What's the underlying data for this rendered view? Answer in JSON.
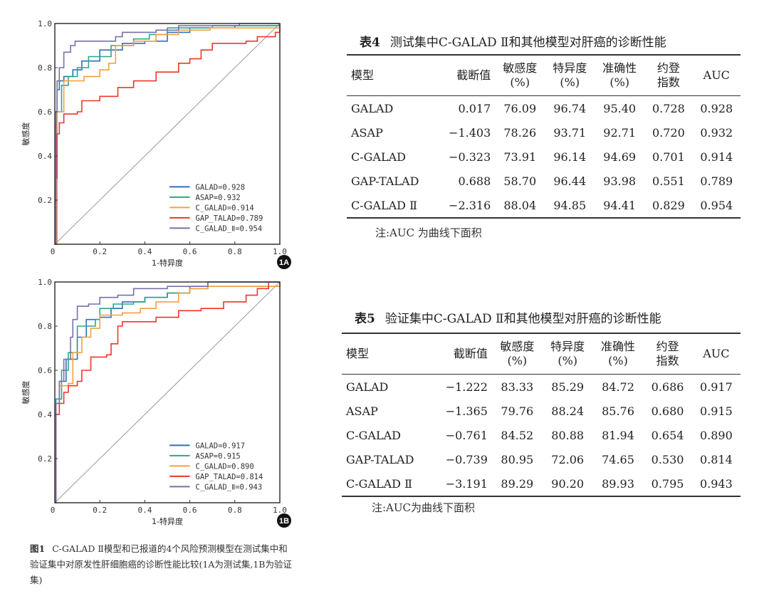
{
  "chart_data": [
    {
      "type": "line",
      "panel_label": "1A",
      "xlabel": "1-特异度",
      "ylabel": "敏感度",
      "xlim": [
        0,
        1
      ],
      "ylim": [
        0,
        1
      ],
      "xticks": [
        "0",
        "0.2",
        "0.4",
        "0.6",
        "0.8",
        "1.0"
      ],
      "yticks": [
        "0.2",
        "0.4",
        "0.6",
        "0.8",
        "1.0"
      ],
      "legend_position": "bottom-right",
      "diagonal_reference": true,
      "series": [
        {
          "name": "GALAD=0.928",
          "color": "#2e6fb8",
          "points": [
            [
              0,
              0
            ],
            [
              0.005,
              0.55
            ],
            [
              0.01,
              0.7
            ],
            [
              0.02,
              0.74
            ],
            [
              0.04,
              0.76
            ],
            [
              0.08,
              0.79
            ],
            [
              0.12,
              0.83
            ],
            [
              0.2,
              0.88
            ],
            [
              0.3,
              0.91
            ],
            [
              0.4,
              0.92
            ],
            [
              0.5,
              0.96
            ],
            [
              0.6,
              0.98
            ],
            [
              0.8,
              0.99
            ],
            [
              1,
              1
            ]
          ]
        },
        {
          "name": "ASAP=0.932",
          "color": "#2ca58d",
          "points": [
            [
              0,
              0
            ],
            [
              0.01,
              0.6
            ],
            [
              0.03,
              0.72
            ],
            [
              0.06,
              0.76
            ],
            [
              0.1,
              0.8
            ],
            [
              0.15,
              0.85
            ],
            [
              0.25,
              0.9
            ],
            [
              0.35,
              0.93
            ],
            [
              0.42,
              0.95
            ],
            [
              0.5,
              0.98
            ],
            [
              0.7,
              0.99
            ],
            [
              1,
              1
            ]
          ]
        },
        {
          "name": "C_GALAD=0.914",
          "color": "#f5a040",
          "points": [
            [
              0,
              0
            ],
            [
              0.01,
              0.6
            ],
            [
              0.04,
              0.74
            ],
            [
              0.09,
              0.74
            ],
            [
              0.13,
              0.76
            ],
            [
              0.2,
              0.79
            ],
            [
              0.24,
              0.82
            ],
            [
              0.27,
              0.9
            ],
            [
              0.35,
              0.92
            ],
            [
              0.45,
              0.95
            ],
            [
              0.55,
              0.97
            ],
            [
              0.69,
              0.98
            ],
            [
              1,
              1
            ]
          ]
        },
        {
          "name": "GAP_TALAD=0.789",
          "color": "#f0352a",
          "points": [
            [
              0,
              0
            ],
            [
              0.005,
              0.3
            ],
            [
              0.01,
              0.5
            ],
            [
              0.02,
              0.55
            ],
            [
              0.04,
              0.59
            ],
            [
              0.1,
              0.6
            ],
            [
              0.12,
              0.65
            ],
            [
              0.2,
              0.67
            ],
            [
              0.28,
              0.71
            ],
            [
              0.35,
              0.74
            ],
            [
              0.45,
              0.78
            ],
            [
              0.55,
              0.82
            ],
            [
              0.6,
              0.84
            ],
            [
              0.65,
              0.88
            ],
            [
              0.7,
              0.91
            ],
            [
              0.85,
              0.92
            ],
            [
              0.9,
              0.94
            ],
            [
              0.98,
              0.96
            ],
            [
              1,
              1
            ]
          ]
        },
        {
          "name": "C_GALAD_Ⅱ=0.954",
          "color": "#7a6fa8",
          "points": [
            [
              0,
              0
            ],
            [
              0.005,
              0.6
            ],
            [
              0.01,
              0.74
            ],
            [
              0.02,
              0.8
            ],
            [
              0.04,
              0.87
            ],
            [
              0.07,
              0.9
            ],
            [
              0.09,
              0.92
            ],
            [
              0.18,
              0.92
            ],
            [
              0.27,
              0.94
            ],
            [
              0.3,
              0.96
            ],
            [
              0.45,
              0.97
            ],
            [
              0.55,
              0.99
            ],
            [
              0.82,
              1
            ],
            [
              1,
              1
            ]
          ]
        }
      ]
    },
    {
      "type": "line",
      "panel_label": "1B",
      "xlabel": "1-特异度",
      "ylabel": "敏感度",
      "xlim": [
        0,
        1
      ],
      "ylim": [
        0,
        1
      ],
      "xticks": [
        "0",
        "0.2",
        "0.4",
        "0.6",
        "0.8",
        "1.0"
      ],
      "yticks": [
        "0.2",
        "0.4",
        "0.6",
        "0.8",
        "1.0"
      ],
      "legend_position": "bottom-right",
      "diagonal_reference": true,
      "series": [
        {
          "name": "GALAD=0.917",
          "color": "#2e6fb8",
          "points": [
            [
              0,
              0
            ],
            [
              0.005,
              0.45
            ],
            [
              0.02,
              0.55
            ],
            [
              0.05,
              0.65
            ],
            [
              0.1,
              0.75
            ],
            [
              0.14,
              0.83
            ],
            [
              0.2,
              0.84
            ],
            [
              0.25,
              0.88
            ],
            [
              0.3,
              0.91
            ],
            [
              0.4,
              0.93
            ],
            [
              0.5,
              0.95
            ],
            [
              0.6,
              0.98
            ],
            [
              0.68,
              1
            ],
            [
              1,
              1
            ]
          ]
        },
        {
          "name": "ASAP=0.915",
          "color": "#2ca58d",
          "points": [
            [
              0,
              0
            ],
            [
              0.005,
              0.47
            ],
            [
              0.03,
              0.6
            ],
            [
              0.06,
              0.68
            ],
            [
              0.1,
              0.8
            ],
            [
              0.18,
              0.83
            ],
            [
              0.2,
              0.88
            ],
            [
              0.26,
              0.9
            ],
            [
              0.35,
              0.91
            ],
            [
              0.4,
              0.93
            ],
            [
              0.5,
              0.95
            ],
            [
              0.6,
              0.97
            ],
            [
              0.68,
              0.98
            ],
            [
              1,
              1
            ]
          ]
        },
        {
          "name": "C_GALAD=0.890",
          "color": "#f5a040",
          "points": [
            [
              0,
              0
            ],
            [
              0.005,
              0.45
            ],
            [
              0.02,
              0.53
            ],
            [
              0.06,
              0.54
            ],
            [
              0.08,
              0.68
            ],
            [
              0.12,
              0.75
            ],
            [
              0.16,
              0.79
            ],
            [
              0.2,
              0.85
            ],
            [
              0.3,
              0.86
            ],
            [
              0.38,
              0.88
            ],
            [
              0.45,
              0.91
            ],
            [
              0.55,
              0.95
            ],
            [
              0.6,
              0.97
            ],
            [
              0.68,
              0.98
            ],
            [
              1,
              1
            ]
          ]
        },
        {
          "name": "GAP_TALAD=0.814",
          "color": "#f0352a",
          "points": [
            [
              0,
              0
            ],
            [
              0.005,
              0.4
            ],
            [
              0.02,
              0.45
            ],
            [
              0.04,
              0.5
            ],
            [
              0.06,
              0.53
            ],
            [
              0.1,
              0.55
            ],
            [
              0.12,
              0.6
            ],
            [
              0.16,
              0.66
            ],
            [
              0.23,
              0.67
            ],
            [
              0.25,
              0.72
            ],
            [
              0.28,
              0.8
            ],
            [
              0.3,
              0.82
            ],
            [
              0.45,
              0.84
            ],
            [
              0.55,
              0.87
            ],
            [
              0.65,
              0.88
            ],
            [
              0.75,
              0.91
            ],
            [
              0.85,
              0.94
            ],
            [
              0.9,
              0.97
            ],
            [
              0.95,
              1
            ],
            [
              1,
              1
            ]
          ]
        },
        {
          "name": "C_GALAD_Ⅱ=0.943",
          "color": "#7a6fa8",
          "points": [
            [
              0,
              0
            ],
            [
              0.005,
              0.45
            ],
            [
              0.02,
              0.55
            ],
            [
              0.04,
              0.65
            ],
            [
              0.07,
              0.75
            ],
            [
              0.08,
              0.83
            ],
            [
              0.1,
              0.89
            ],
            [
              0.15,
              0.9
            ],
            [
              0.2,
              0.93
            ],
            [
              0.28,
              0.94
            ],
            [
              0.35,
              0.97
            ],
            [
              0.5,
              0.98
            ],
            [
              0.68,
              1
            ],
            [
              1,
              1
            ]
          ]
        }
      ]
    }
  ],
  "caption": {
    "label": "图1",
    "text": "C-GALAD Ⅱ模型和已报道的4个风险预测模型在测试集中和验证集中对原发性肝细胞癌的诊断性能比较(1A为测试集,1B为验证集)"
  },
  "tables": [
    {
      "label": "表4",
      "title": "测试集中C-GALAD Ⅱ和其他模型对肝癌的诊断性能",
      "headers": [
        [
          "模型"
        ],
        [
          "截断值"
        ],
        [
          "敏感度",
          "(%)"
        ],
        [
          "特异度",
          "(%)"
        ],
        [
          "准确性",
          "(%)"
        ],
        [
          "约登",
          "指数"
        ],
        [
          "AUC"
        ]
      ],
      "rows": [
        [
          "GALAD",
          "0.017",
          "76.09",
          "96.74",
          "95.40",
          "0.728",
          "0.928"
        ],
        [
          "ASAP",
          "−1.403",
          "78.26",
          "93.71",
          "92.71",
          "0.720",
          "0.932"
        ],
        [
          "C-GALAD",
          "−0.323",
          "73.91",
          "96.14",
          "94.69",
          "0.701",
          "0.914"
        ],
        [
          "GAP-TALAD",
          "0.688",
          "58.70",
          "96.44",
          "93.98",
          "0.551",
          "0.789"
        ],
        [
          "C-GALAD Ⅱ",
          "−2.316",
          "88.04",
          "94.85",
          "94.41",
          "0.829",
          "0.954"
        ]
      ],
      "note": "注:AUC 为曲线下面积"
    },
    {
      "label": "表5",
      "title": "验证集中C-GALAD Ⅱ和其他模型对肝癌的诊断性能",
      "headers": [
        [
          "模型"
        ],
        [
          "截断值"
        ],
        [
          "敏感度",
          "(%)"
        ],
        [
          "特异度",
          "(%)"
        ],
        [
          "准确性",
          "(%)"
        ],
        [
          "约登",
          "指数"
        ],
        [
          "AUC"
        ]
      ],
      "rows": [
        [
          "GALAD",
          "−1.222",
          "83.33",
          "85.29",
          "84.72",
          "0.686",
          "0.917"
        ],
        [
          "ASAP",
          "−1.365",
          "79.76",
          "88.24",
          "85.76",
          "0.680",
          "0.915"
        ],
        [
          "C-GALAD",
          "−0.761",
          "84.52",
          "80.88",
          "81.94",
          "0.654",
          "0.890"
        ],
        [
          "GAP-TALAD",
          "−0.739",
          "80.95",
          "72.06",
          "74.65",
          "0.530",
          "0.814"
        ],
        [
          "C-GALAD Ⅱ",
          "−3.191",
          "89.29",
          "90.20",
          "89.93",
          "0.795",
          "0.943"
        ]
      ],
      "note": "注:AUC为曲线下面积"
    }
  ]
}
